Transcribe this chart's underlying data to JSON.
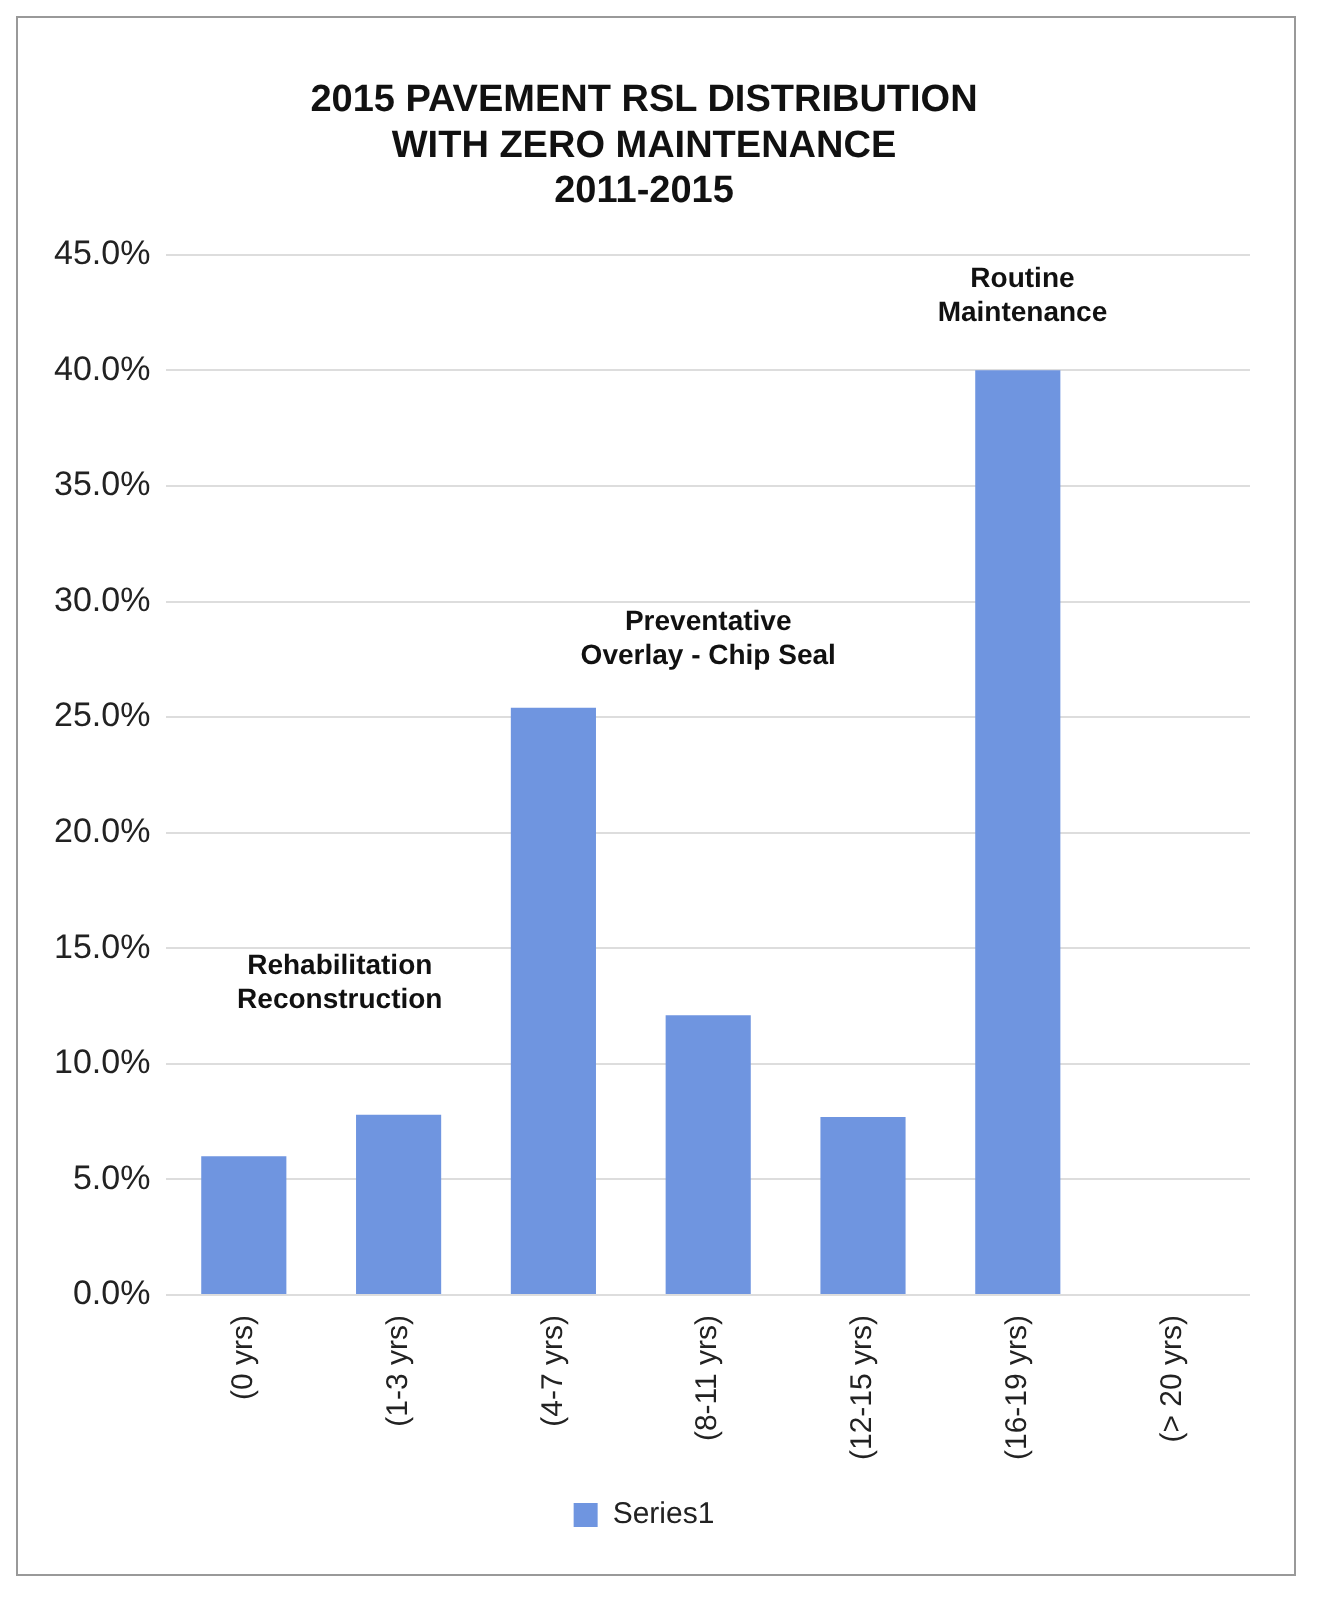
{
  "chart_data": {
    "type": "bar",
    "title": "2015 PAVEMENT RSL DISTRIBUTION\nWITH ZERO MAINTENANCE\n2011-2015",
    "categories": [
      "(0 yrs)",
      "(1-3 yrs)",
      "(4-7 yrs)",
      "(8-11 yrs)",
      "(12-15 yrs)",
      "(16-19 yrs)",
      "(> 20 yrs)"
    ],
    "series": [
      {
        "name": "Series1",
        "color": "#6f95e0",
        "values": [
          6.0,
          7.8,
          25.4,
          12.1,
          7.7,
          40.0,
          0
        ]
      }
    ],
    "ylim": [
      0,
      45
    ],
    "yticks": [
      {
        "value": 0,
        "label": "0.0%"
      },
      {
        "value": 5,
        "label": "5.0%"
      },
      {
        "value": 10,
        "label": "10.0%"
      },
      {
        "value": 15,
        "label": "15.0%"
      },
      {
        "value": 20,
        "label": "20.0%"
      },
      {
        "value": 25,
        "label": "25.0%"
      },
      {
        "value": 30,
        "label": "30.0%"
      },
      {
        "value": 35,
        "label": "35.0%"
      },
      {
        "value": 40,
        "label": "40.0%"
      },
      {
        "value": 45,
        "label": "45.0%"
      }
    ],
    "annotations": [
      "Rehabilitation\nReconstruction",
      "Preventative\nOverlay - Chip Seal",
      "Routine\nMaintenance"
    ],
    "grid": "y",
    "legend": "bottom"
  }
}
